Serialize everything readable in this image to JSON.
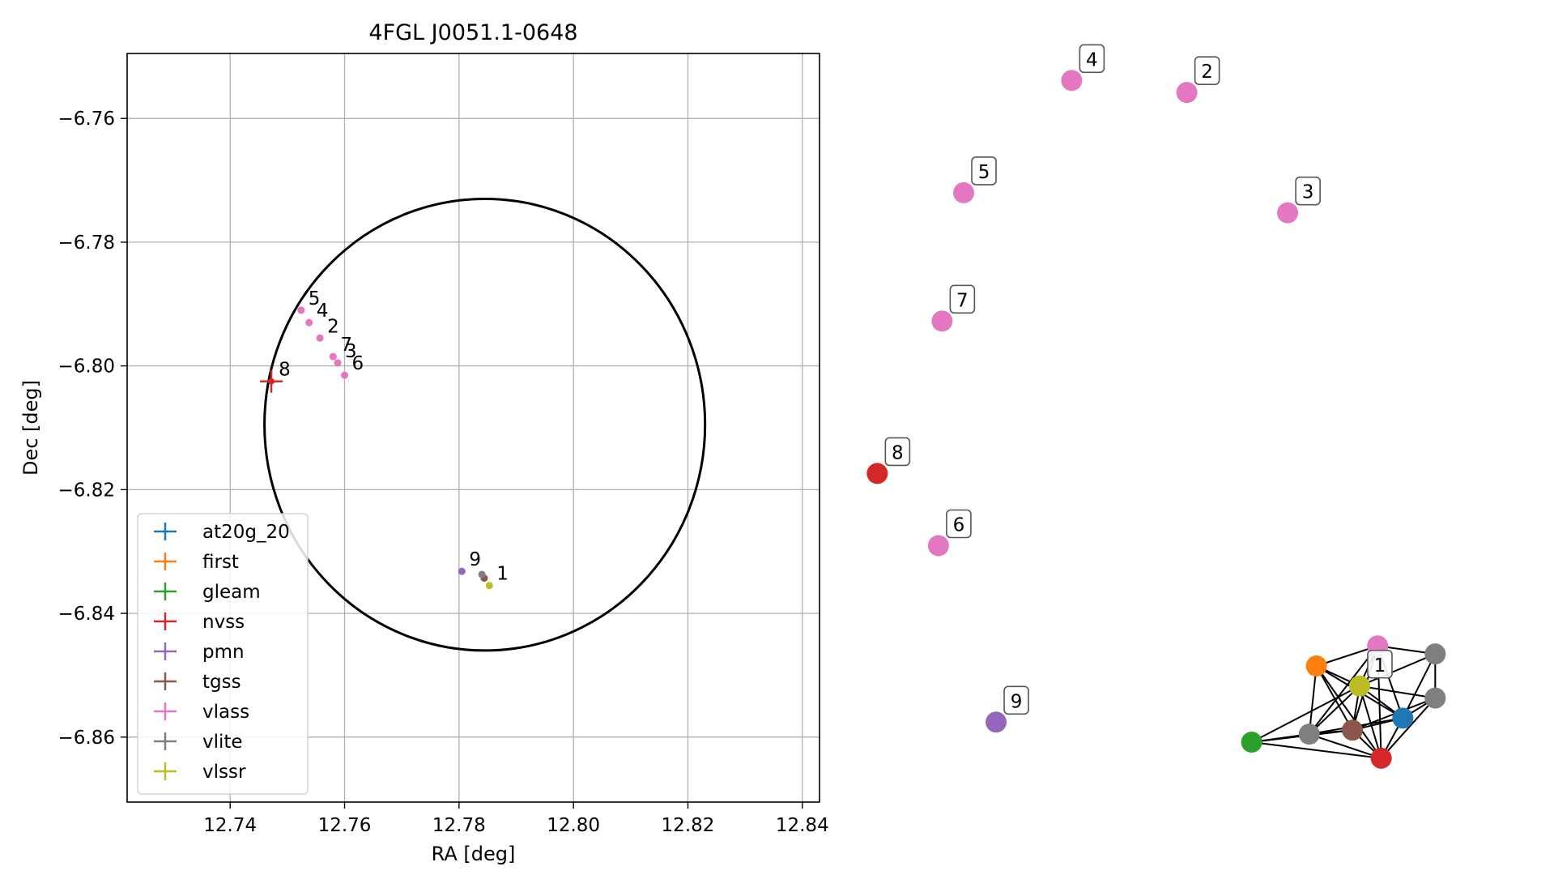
{
  "chart_data": [
    {
      "type": "scatter",
      "title": "4FGL J0051.1-0648",
      "xlabel": "RA [deg]",
      "ylabel": "Dec [deg]",
      "xlim": [
        12.722,
        12.843
      ],
      "ylim": [
        -6.8705,
        -6.7495
      ],
      "xticks": [
        12.74,
        12.76,
        12.78,
        12.8,
        12.82,
        12.84
      ],
      "xtick_labels": [
        "12.74",
        "12.76",
        "12.78",
        "12.80",
        "12.82",
        "12.84"
      ],
      "yticks": [
        -6.86,
        -6.84,
        -6.82,
        -6.8,
        -6.78,
        -6.76
      ],
      "ytick_labels": [
        "−6.86",
        "−6.84",
        "−6.82",
        "−6.80",
        "−6.78",
        "−6.76"
      ],
      "grid": true,
      "legend_position": "lower-left",
      "ellipse": {
        "center_ra": 12.7845,
        "center_dec": -6.8095,
        "semi_ra": 0.0385,
        "semi_dec": 0.0365,
        "color": "#000000"
      },
      "series": [
        {
          "name": "at20g_20",
          "color": "#1f77b4",
          "points": []
        },
        {
          "name": "first",
          "color": "#ff7f0e",
          "points": []
        },
        {
          "name": "gleam",
          "color": "#2ca02c",
          "points": []
        },
        {
          "name": "nvss",
          "color": "#d62728",
          "points": [
            {
              "ra": 12.7472,
              "dec": -6.8025,
              "label": "8",
              "err": true
            }
          ]
        },
        {
          "name": "pmn",
          "color": "#9467bd",
          "points": [
            {
              "ra": 12.7805,
              "dec": -6.8332,
              "label": "9"
            }
          ]
        },
        {
          "name": "tgss",
          "color": "#8c564b",
          "points": [
            {
              "ra": 12.7844,
              "dec": -6.8343,
              "label": ""
            }
          ]
        },
        {
          "name": "vlass",
          "color": "#e377c2",
          "points": [
            {
              "ra": 12.7524,
              "dec": -6.791,
              "label": "5"
            },
            {
              "ra": 12.7538,
              "dec": -6.793,
              "label": "4"
            },
            {
              "ra": 12.7557,
              "dec": -6.7955,
              "label": "2"
            },
            {
              "ra": 12.758,
              "dec": -6.7985,
              "label": "7"
            },
            {
              "ra": 12.7588,
              "dec": -6.7995,
              "label": "3"
            },
            {
              "ra": 12.76,
              "dec": -6.8015,
              "label": "6"
            }
          ]
        },
        {
          "name": "vlite",
          "color": "#7f7f7f",
          "points": [
            {
              "ra": 12.784,
              "dec": -6.8337,
              "label": ""
            }
          ]
        },
        {
          "name": "vlssr",
          "color": "#bcbd22",
          "points": [
            {
              "ra": 12.7853,
              "dec": -6.8355,
              "label": "1"
            }
          ]
        }
      ]
    },
    {
      "type": "network",
      "nodes": [
        {
          "id": "vlass-4",
          "color": "#e377c2",
          "label": "4",
          "pos": [
            0.33,
            0.07
          ]
        },
        {
          "id": "vlass-2",
          "color": "#e377c2",
          "label": "2",
          "pos": [
            0.49,
            0.085
          ]
        },
        {
          "id": "vlass-5",
          "color": "#e377c2",
          "label": "5",
          "pos": [
            0.18,
            0.21
          ]
        },
        {
          "id": "vlass-3",
          "color": "#e377c2",
          "label": "3",
          "pos": [
            0.63,
            0.235
          ]
        },
        {
          "id": "vlass-7",
          "color": "#e377c2",
          "label": "7",
          "pos": [
            0.15,
            0.37
          ]
        },
        {
          "id": "nvss-8",
          "color": "#d62728",
          "label": "8",
          "pos": [
            0.06,
            0.56
          ]
        },
        {
          "id": "vlass-6",
          "color": "#e377c2",
          "label": "6",
          "pos": [
            0.145,
            0.65
          ]
        },
        {
          "id": "pmn-9",
          "color": "#9467bd",
          "label": "9",
          "pos": [
            0.225,
            0.87
          ]
        },
        {
          "id": "gleam",
          "color": "#2ca02c",
          "label": "",
          "pos": [
            0.58,
            0.895
          ]
        },
        {
          "id": "vlite-a",
          "color": "#7f7f7f",
          "label": "",
          "pos": [
            0.66,
            0.885
          ]
        },
        {
          "id": "first",
          "color": "#ff7f0e",
          "label": "",
          "pos": [
            0.67,
            0.8
          ]
        },
        {
          "id": "tgss",
          "color": "#8c564b",
          "label": "",
          "pos": [
            0.72,
            0.88
          ]
        },
        {
          "id": "vlssr-1",
          "color": "#bcbd22",
          "label": "1",
          "pos": [
            0.73,
            0.825
          ]
        },
        {
          "id": "vlass-1",
          "color": "#e377c2",
          "label": "",
          "pos": [
            0.755,
            0.775
          ]
        },
        {
          "id": "nvss-b",
          "color": "#d62728",
          "label": "",
          "pos": [
            0.76,
            0.915
          ]
        },
        {
          "id": "at20g",
          "color": "#1f77b4",
          "label": "",
          "pos": [
            0.79,
            0.865
          ]
        },
        {
          "id": "vlite-b",
          "color": "#7f7f7f",
          "label": "",
          "pos": [
            0.835,
            0.785
          ]
        },
        {
          "id": "vlite-c",
          "color": "#7f7f7f",
          "label": "",
          "pos": [
            0.835,
            0.84
          ]
        }
      ],
      "edges": [
        [
          "gleam",
          "vlite-a"
        ],
        [
          "gleam",
          "tgss"
        ],
        [
          "gleam",
          "vlssr-1"
        ],
        [
          "gleam",
          "nvss-b"
        ],
        [
          "vlite-a",
          "tgss"
        ],
        [
          "vlite-a",
          "vlssr-1"
        ],
        [
          "vlite-a",
          "first"
        ],
        [
          "vlite-a",
          "vlass-1"
        ],
        [
          "vlite-a",
          "nvss-b"
        ],
        [
          "vlite-a",
          "at20g"
        ],
        [
          "first",
          "vlssr-1"
        ],
        [
          "first",
          "tgss"
        ],
        [
          "first",
          "at20g"
        ],
        [
          "first",
          "nvss-b"
        ],
        [
          "first",
          "vlass-1"
        ],
        [
          "tgss",
          "vlssr-1"
        ],
        [
          "tgss",
          "nvss-b"
        ],
        [
          "tgss",
          "at20g"
        ],
        [
          "tgss",
          "vlass-1"
        ],
        [
          "tgss",
          "vlite-c"
        ],
        [
          "vlssr-1",
          "vlass-1"
        ],
        [
          "vlssr-1",
          "nvss-b"
        ],
        [
          "vlssr-1",
          "at20g"
        ],
        [
          "vlssr-1",
          "vlite-b"
        ],
        [
          "vlssr-1",
          "vlite-c"
        ],
        [
          "vlass-1",
          "at20g"
        ],
        [
          "vlass-1",
          "nvss-b"
        ],
        [
          "vlass-1",
          "vlite-b"
        ],
        [
          "nvss-b",
          "at20g"
        ],
        [
          "nvss-b",
          "vlite-c"
        ],
        [
          "at20g",
          "vlite-b"
        ],
        [
          "at20g",
          "vlite-c"
        ],
        [
          "vlite-b",
          "vlite-c"
        ]
      ]
    }
  ]
}
